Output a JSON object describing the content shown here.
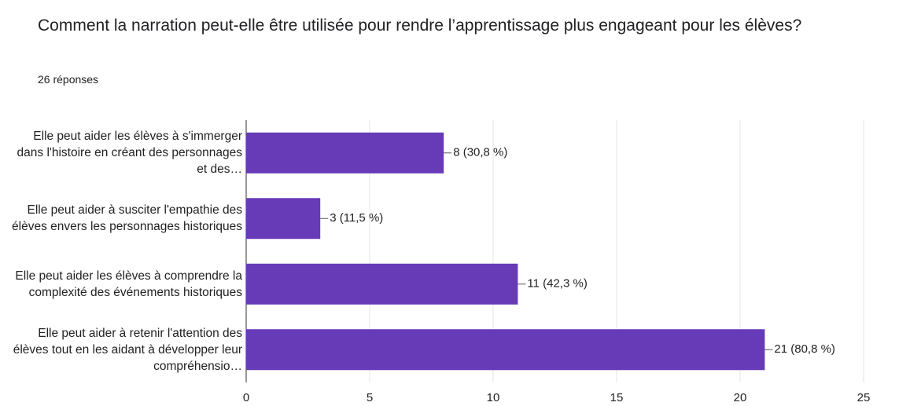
{
  "chart_data": {
    "type": "hbar",
    "title": "Comment la narration peut-elle être utilisée pour rendre l’apprentissage plus engageant pour les élèves?",
    "subtitle": "26 réponses",
    "categories": [
      "Elle peut aider les élèves à s'immerger dans l'histoire en créant des personnages et des…",
      "Elle peut aider à susciter l'empathie des élèves envers les personnages historiques",
      "Elle peut aider les élèves à comprendre la complexité des événements historiques",
      "Elle peut aider à retenir l'attention des élèves tout en les aidant à développer leur compréhensio…"
    ],
    "values": [
      8,
      3,
      11,
      21
    ],
    "value_labels": [
      "8 (30,8 %)",
      "3 (11,5 %)",
      "11 (42,3 %)",
      "21 (80,8 %)"
    ],
    "color": "#673ab7",
    "xlim": [
      0,
      25
    ],
    "xticks": [
      0,
      5,
      10,
      15,
      20,
      25
    ],
    "grid": true
  }
}
